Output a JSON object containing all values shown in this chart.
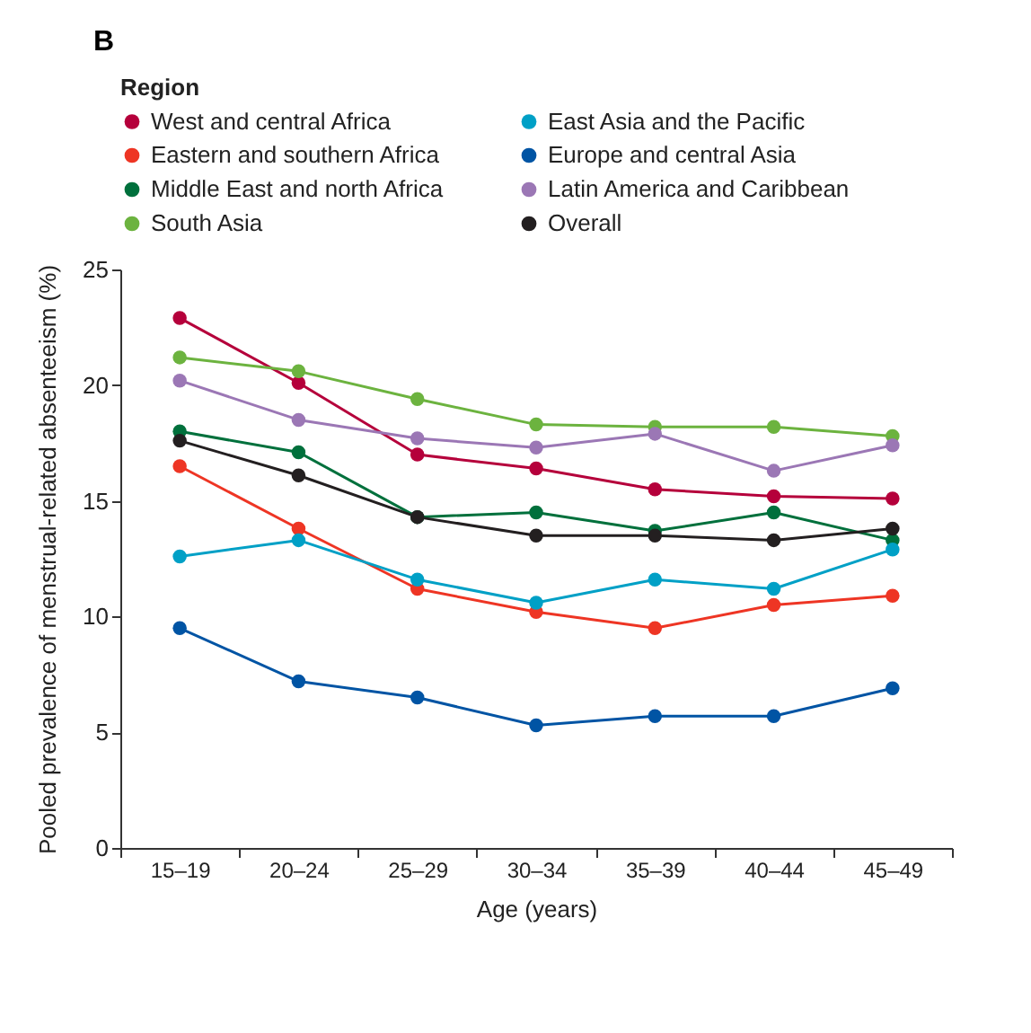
{
  "chart_data": {
    "type": "line",
    "title": "B",
    "xlabel": "Age (years)",
    "ylabel": "Pooled prevalence of menstrual-related absenteeism (%)",
    "legend_title": "Region",
    "categories": [
      "15–19",
      "20–24",
      "25–29",
      "30–34",
      "35–39",
      "40–44",
      "45–49"
    ],
    "series": [
      {
        "name": "West and central Africa",
        "color": "#b5003b",
        "values": [
          22.9,
          20.1,
          17.0,
          16.4,
          15.5,
          15.2,
          15.1
        ]
      },
      {
        "name": "Eastern and southern Africa",
        "color": "#ee3524",
        "values": [
          16.5,
          13.8,
          11.2,
          10.2,
          9.5,
          10.5,
          10.9
        ]
      },
      {
        "name": "Middle East and north Africa",
        "color": "#00703c",
        "values": [
          18.0,
          17.1,
          14.3,
          14.5,
          13.7,
          14.5,
          13.3
        ]
      },
      {
        "name": "South Asia",
        "color": "#6cb33f",
        "values": [
          21.2,
          20.6,
          19.4,
          18.3,
          18.2,
          18.2,
          17.8
        ]
      },
      {
        "name": "East Asia and the Pacific",
        "color": "#00a0c6",
        "values": [
          12.6,
          13.3,
          11.6,
          10.6,
          11.6,
          11.2,
          12.9
        ]
      },
      {
        "name": "Europe and central Asia",
        "color": "#0054a4",
        "values": [
          9.5,
          7.2,
          6.5,
          5.3,
          5.7,
          5.7,
          6.9
        ]
      },
      {
        "name": "Latin America and Caribbean",
        "color": "#9b77b5",
        "values": [
          20.2,
          18.5,
          17.7,
          17.3,
          17.9,
          16.3,
          17.4
        ]
      },
      {
        "name": "Overall",
        "color": "#231f20",
        "values": [
          17.6,
          16.1,
          14.3,
          13.5,
          13.5,
          13.3,
          13.8
        ]
      }
    ],
    "ylim": [
      0,
      25
    ],
    "yticks": [
      0,
      5,
      10,
      15,
      20,
      25
    ],
    "grid": false,
    "legend": "top",
    "marker": "circle",
    "line_style": "solid"
  }
}
